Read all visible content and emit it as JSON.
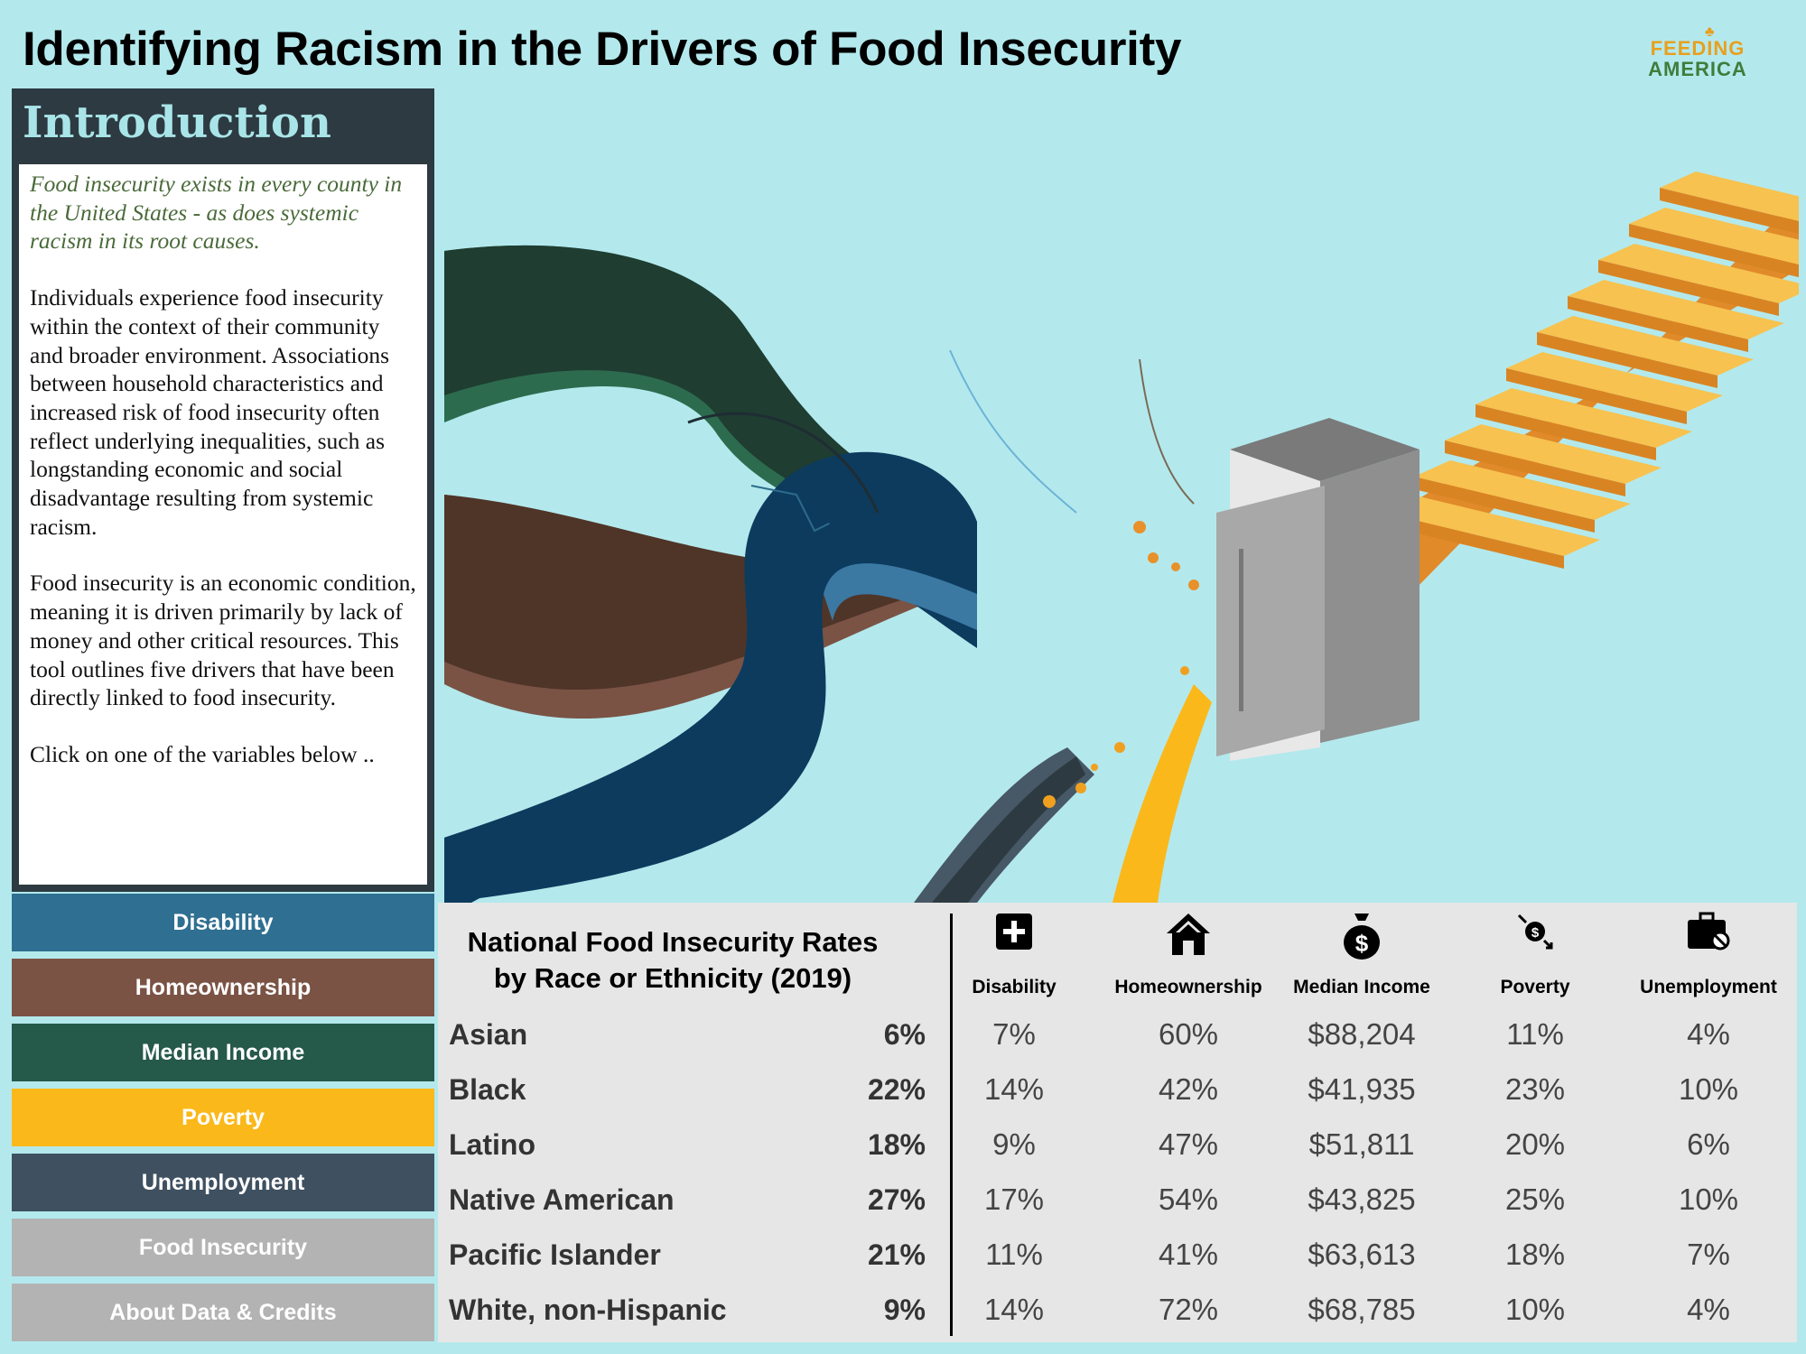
{
  "header": {
    "title": "Identifying Racism in the Drivers of Food Insecurity"
  },
  "logo": {
    "line1": "FEEDING",
    "line2": "AMERICA"
  },
  "intro": {
    "heading": "Introduction",
    "lead": "Food insecurity exists in every county in the United States - as does systemic racism in its root causes.",
    "para1": "Individuals experience food insecurity within the context of their community and broader environment. Associations between household characteristics and increased risk of food insecurity often reflect underlying inequalities, such as longstanding economic and social disadvantage resulting from systemic racism.",
    "para2": "Food insecurity is an economic condition, meaning it is driven primarily by lack of money and other critical resources. This tool outlines five drivers that have been directly linked to food insecurity.",
    "para3": "Click on one of the variables below .."
  },
  "nav": [
    {
      "label": "Disability",
      "color": "#2f6f91"
    },
    {
      "label": "Homeownership",
      "color": "#7a5345"
    },
    {
      "label": "Median Income",
      "color": "#25594a"
    },
    {
      "label": "Poverty",
      "color": "#fbb81a"
    },
    {
      "label": "Unemployment",
      "color": "#3f5060"
    },
    {
      "label": "Food Insecurity",
      "color": "#b3b3b3"
    },
    {
      "label": "About Data & Credits",
      "color": "#b3b3b3"
    }
  ],
  "table": {
    "title_line1": "National Food Insecurity Rates",
    "title_line2": "by Race or Ethnicity (2019)",
    "columns": [
      "Disability",
      "Homeownership",
      "Median Income",
      "Poverty",
      "Unemployment"
    ],
    "column_icons": [
      "medical-plus-icon",
      "house-icon",
      "money-bag-icon",
      "poverty-icon",
      "briefcase-icon"
    ],
    "rows": [
      {
        "label": "Asian",
        "rate": "6%",
        "values": [
          "7%",
          "60%",
          "$88,204",
          "11%",
          "4%"
        ]
      },
      {
        "label": "Black",
        "rate": "22%",
        "values": [
          "14%",
          "42%",
          "$41,935",
          "23%",
          "10%"
        ]
      },
      {
        "label": "Latino",
        "rate": "18%",
        "values": [
          "9%",
          "47%",
          "$51,811",
          "20%",
          "6%"
        ]
      },
      {
        "label": "Native American",
        "rate": "27%",
        "values": [
          "17%",
          "54%",
          "$43,825",
          "25%",
          "10%"
        ]
      },
      {
        "label": "Pacific Islander",
        "rate": "21%",
        "values": [
          "11%",
          "41%",
          "$63,613",
          "18%",
          "7%"
        ]
      },
      {
        "label": "White, non-Hispanic",
        "rate": "9%",
        "values": [
          "14%",
          "72%",
          "$68,785",
          "10%",
          "4%"
        ]
      }
    ]
  }
}
